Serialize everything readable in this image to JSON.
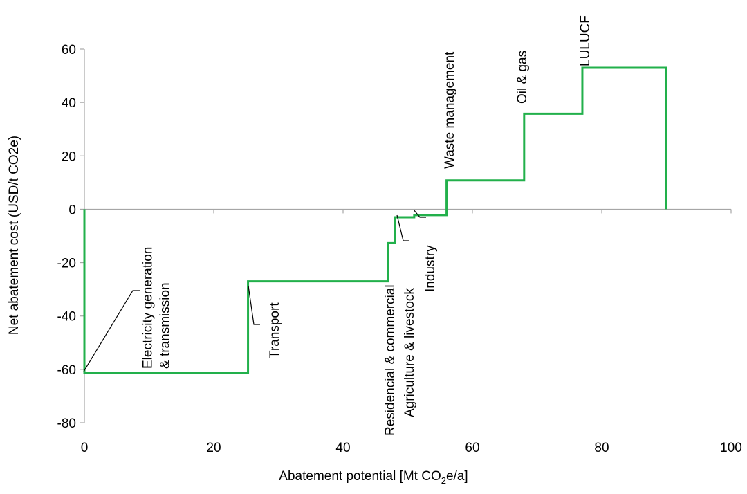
{
  "chart_data": {
    "type": "line",
    "subtype": "marginal-abatement-cost-curve",
    "title": "",
    "xlabel_pre": "Abatement potential [Mt CO",
    "xlabel_sub": "2",
    "xlabel_post": "e/a]",
    "ylabel": "Net abatement cost (USD/t CO2e)",
    "xlim": [
      0,
      100
    ],
    "ylim": [
      -80,
      60
    ],
    "xticks": [
      0,
      20,
      40,
      60,
      80,
      100
    ],
    "yticks": [
      -80,
      -60,
      -40,
      -20,
      0,
      20,
      40,
      60
    ],
    "grid": false,
    "line_color": "#22b04b",
    "axis_color": "#a6a6a6",
    "segments": [
      {
        "label": "Electricity generation\n& transmission",
        "x_start": 0,
        "x_end": 25.3,
        "cost": -61.3
      },
      {
        "label": "Transport",
        "x_start": 25.3,
        "x_end": 47.0,
        "cost": -27.0
      },
      {
        "label": "Residencial & commercial",
        "x_start": 47.0,
        "x_end": 48.0,
        "cost": -12.7
      },
      {
        "label": "Agriculture & livestock",
        "x_start": 48.0,
        "x_end": 51.0,
        "cost": -3.0
      },
      {
        "label": "Industry",
        "x_start": 51.0,
        "x_end": 56.0,
        "cost": -2.2
      },
      {
        "label": "Waste management",
        "x_start": 56.0,
        "x_end": 68.0,
        "cost": 10.8
      },
      {
        "label": "Oil & gas",
        "x_start": 68.0,
        "x_end": 77.0,
        "cost": 35.8
      },
      {
        "label": "LULUCF",
        "x_start": 77.0,
        "x_end": 90.0,
        "cost": 53.0
      }
    ]
  }
}
